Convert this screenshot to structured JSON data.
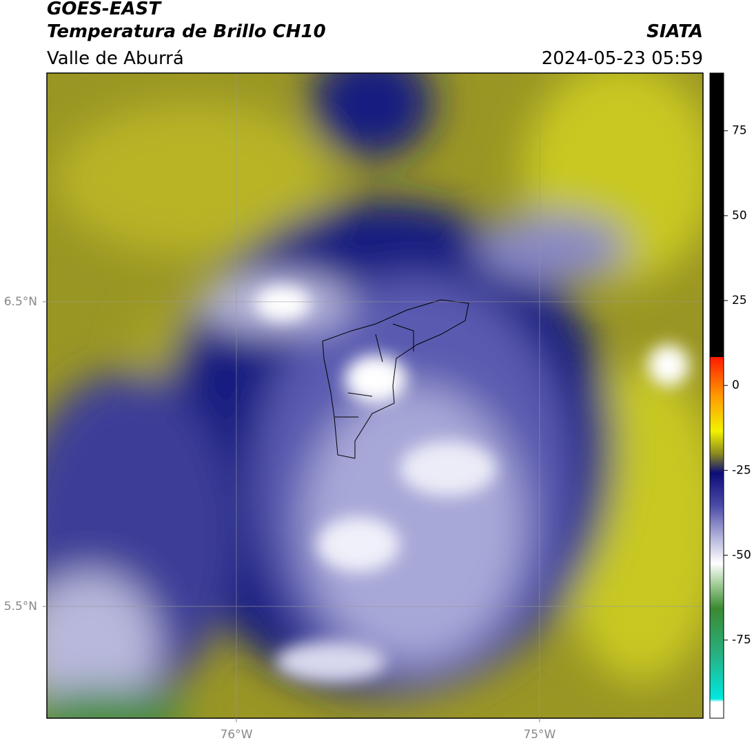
{
  "header": {
    "source": "GOES-EAST",
    "product": "Temperatura de Brillo CH10",
    "region": "Valle de Aburrá",
    "agency": "SIATA",
    "datetime": "2024-05-23 05:59"
  },
  "map": {
    "xlim": [
      -76.625,
      -74.461
    ],
    "ylim": [
      5.133,
      7.251
    ],
    "xticks": [
      {
        "value": -76,
        "label": "76°W"
      },
      {
        "value": -75,
        "label": "75°W"
      }
    ],
    "yticks": [
      {
        "value": 6.5,
        "label": "6.5°N"
      },
      {
        "value": 5.5,
        "label": "5.5°N"
      }
    ],
    "grid": true
  },
  "colorbar": {
    "lim": [
      -98,
      92
    ],
    "ticks": [
      75,
      50,
      25,
      0,
      -25,
      -50,
      -75
    ]
  }
}
